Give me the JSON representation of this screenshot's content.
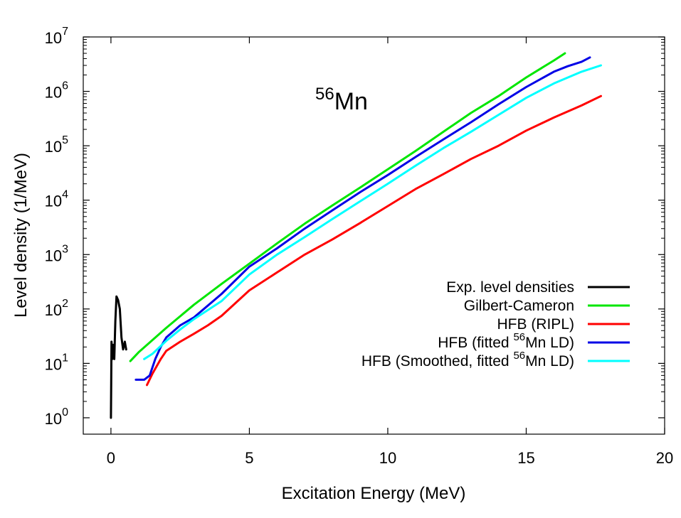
{
  "chart_data": {
    "type": "line",
    "xlabel": "Excitation Energy (MeV)",
    "ylabel": "Level density (1/MeV)",
    "xlim": [
      -1,
      20
    ],
    "ylim": [
      0.5,
      10000000
    ],
    "yscale": "log",
    "grid": false,
    "legend_position": "right",
    "annotation": {
      "mass": "56",
      "element": "Mn"
    },
    "x_ticks": [
      "0",
      "5",
      "10",
      "15",
      "20"
    ],
    "y_ticks": [
      {
        "base": "10",
        "exp": "0"
      },
      {
        "base": "10",
        "exp": "1"
      },
      {
        "base": "10",
        "exp": "2"
      },
      {
        "base": "10",
        "exp": "3"
      },
      {
        "base": "10",
        "exp": "4"
      },
      {
        "base": "10",
        "exp": "5"
      },
      {
        "base": "10",
        "exp": "6"
      },
      {
        "base": "10",
        "exp": "7"
      }
    ],
    "series": [
      {
        "name": "Exp. level densities",
        "legend": {
          "pre": "Exp. level densities",
          "sup": "",
          "post": ""
        },
        "color": "#000000",
        "x": [
          0.0,
          0.02,
          0.05,
          0.08,
          0.12,
          0.16,
          0.2,
          0.26,
          0.32,
          0.38,
          0.44,
          0.5,
          0.55
        ],
        "y": [
          1.0,
          25,
          12,
          22,
          12,
          60,
          170,
          145,
          100,
          30,
          18,
          25,
          18
        ]
      },
      {
        "name": "Gilbert-Cameron",
        "legend": {
          "pre": "Gilbert-Cameron",
          "sup": "",
          "post": ""
        },
        "color": "#00e600",
        "x": [
          0.7,
          1,
          2,
          3,
          4,
          5,
          6,
          7,
          8,
          9,
          10,
          11,
          12,
          13,
          14,
          15,
          16,
          16.4
        ],
        "y": [
          11,
          16,
          45,
          120,
          290,
          680,
          1600,
          3700,
          8000,
          17000,
          37000,
          80000,
          180000,
          400000,
          820000,
          1800000,
          3700000,
          5000000
        ]
      },
      {
        "name": "HFB (RIPL)",
        "legend": {
          "pre": "HFB (RIPL)",
          "sup": "",
          "post": ""
        },
        "color": "#ff0000",
        "x": [
          1.3,
          1.5,
          1.8,
          2,
          2.5,
          3,
          3.5,
          4,
          5,
          6,
          7,
          8,
          9,
          10,
          11,
          12,
          13,
          14,
          15,
          16,
          17,
          17.7
        ],
        "y": [
          4,
          6.5,
          12,
          17,
          25,
          35,
          50,
          75,
          220,
          470,
          1000,
          1900,
          3800,
          7800,
          16000,
          30000,
          57000,
          100000,
          190000,
          330000,
          550000,
          820000
        ]
      },
      {
        "name": "HFB (fitted 56Mn LD)",
        "legend": {
          "pre": "HFB (fitted ",
          "sup": "56",
          "post": "Mn LD)"
        },
        "color": "#0000e6",
        "x": [
          0.9,
          1.2,
          1.4,
          1.6,
          1.8,
          2,
          2.5,
          3,
          4,
          5,
          6,
          7,
          8,
          9,
          10,
          11,
          12,
          13,
          14,
          15,
          16,
          16.5,
          17,
          17.3
        ],
        "y": [
          5,
          5,
          6,
          12,
          20,
          30,
          50,
          70,
          190,
          600,
          1300,
          3000,
          6500,
          14000,
          29000,
          62000,
          130000,
          270000,
          580000,
          1200000,
          2300000,
          2900000,
          3500000,
          4200000
        ]
      },
      {
        "name": "HFB (Smoothed, fitted 56Mn LD)",
        "legend": {
          "pre": "HFB (Smoothed, fitted ",
          "sup": "56",
          "post": "Mn LD)"
        },
        "color": "#00ffff",
        "x": [
          1.2,
          1.5,
          2,
          2.5,
          3,
          4,
          5,
          6,
          7,
          8,
          9,
          10,
          11,
          12,
          13,
          14,
          15,
          16,
          17,
          17.7
        ],
        "y": [
          12,
          15,
          26,
          42,
          65,
          140,
          430,
          1000,
          2100,
          4500,
          9500,
          20000,
          43000,
          90000,
          180000,
          370000,
          760000,
          1400000,
          2300000,
          3000000
        ]
      }
    ]
  }
}
